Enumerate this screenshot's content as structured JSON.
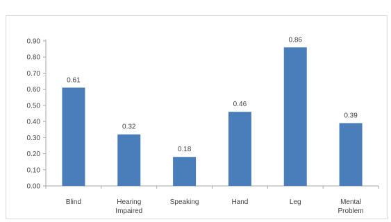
{
  "chart_data": {
    "type": "bar",
    "categories": [
      [
        "Blind"
      ],
      [
        "Hearing",
        "Impaired"
      ],
      [
        "Speaking"
      ],
      [
        "Hand"
      ],
      [
        "Leg"
      ],
      [
        "Mental",
        "Problem"
      ]
    ],
    "values": [
      0.61,
      0.32,
      0.18,
      0.46,
      0.86,
      0.39
    ],
    "data_labels": [
      "0.61",
      "0.32",
      "0.18",
      "0.46",
      "0.86",
      "0.39"
    ],
    "y_ticks": [
      "0.00",
      "0.10",
      "0.20",
      "0.30",
      "0.40",
      "0.50",
      "0.60",
      "0.70",
      "0.80",
      "0.90"
    ],
    "ylim": [
      0,
      0.9
    ],
    "grid": false,
    "legend": "none",
    "bar_color": "#4a7ebb",
    "axis_color": "#a6a6a6"
  }
}
